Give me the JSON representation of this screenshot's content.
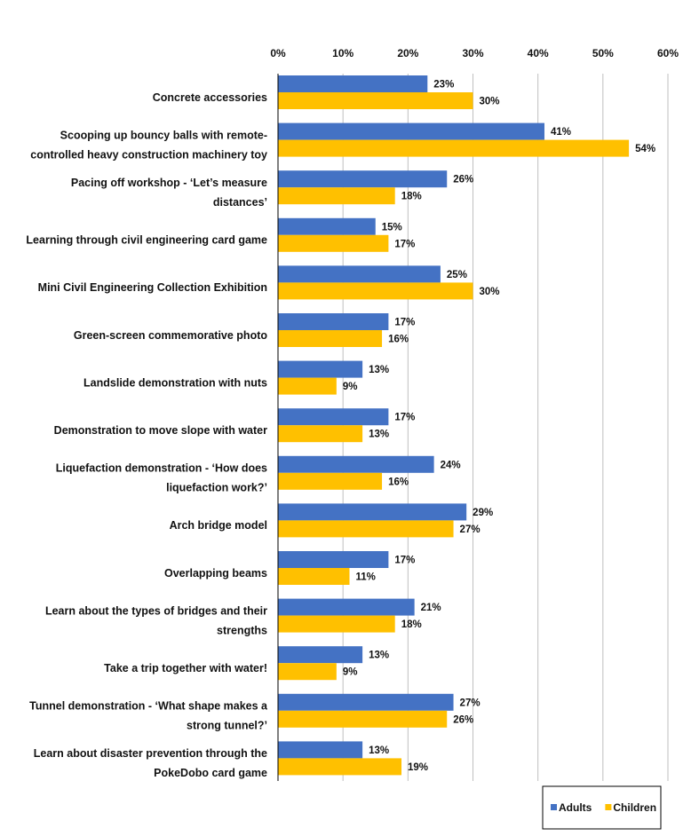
{
  "chart_data": {
    "type": "bar",
    "orientation": "horizontal",
    "title": "",
    "xlabel": "",
    "ylabel": "",
    "xlim": [
      0,
      60
    ],
    "x_ticks": [
      "0%",
      "10%",
      "20%",
      "30%",
      "40%",
      "50%",
      "60%"
    ],
    "grid": true,
    "legend_position": "bottom-right",
    "categories": [
      [
        "Concrete accessories"
      ],
      [
        "Scooping up bouncy balls with remote-",
        "controlled heavy construction machinery toy"
      ],
      [
        "Pacing off workshop - ‘Let’s measure",
        "distances’"
      ],
      [
        "Learning through civil engineering card game"
      ],
      [
        "Mini Civil Engineering Collection Exhibition"
      ],
      [
        "Green-screen commemorative photo"
      ],
      [
        "Landslide demonstration with nuts"
      ],
      [
        "Demonstration to move slope with water"
      ],
      [
        "Liquefaction demonstration - ‘How does",
        "liquefaction work?’"
      ],
      [
        "Arch bridge model"
      ],
      [
        "Overlapping beams"
      ],
      [
        "Learn about the types of bridges and their",
        "strengths"
      ],
      [
        "Take a trip together with water!"
      ],
      [
        "Tunnel demonstration - ‘What shape makes a",
        "strong tunnel?’"
      ],
      [
        "Learn about disaster prevention through the",
        "PokeDobo card game"
      ]
    ],
    "series": [
      {
        "name": "Adults",
        "color": "#4472C4",
        "values": [
          23,
          41,
          26,
          15,
          25,
          17,
          13,
          17,
          24,
          29,
          17,
          21,
          13,
          27,
          13
        ],
        "labels": [
          "23%",
          "41%",
          "26%",
          "15%",
          "25%",
          "17%",
          "13%",
          "17%",
          "24%",
          "29%",
          "17%",
          "21%",
          "13%",
          "27%",
          "13%"
        ]
      },
      {
        "name": "Children",
        "color": "#FFC000",
        "values": [
          30,
          54,
          18,
          17,
          30,
          16,
          9,
          13,
          16,
          27,
          11,
          18,
          9,
          26,
          19
        ],
        "labels": [
          "30%",
          "54%",
          "18%",
          "17%",
          "30%",
          "16%",
          "9%",
          "13%",
          "16%",
          "27%",
          "11%",
          "18%",
          "9%",
          "26%",
          "19%"
        ]
      }
    ]
  }
}
